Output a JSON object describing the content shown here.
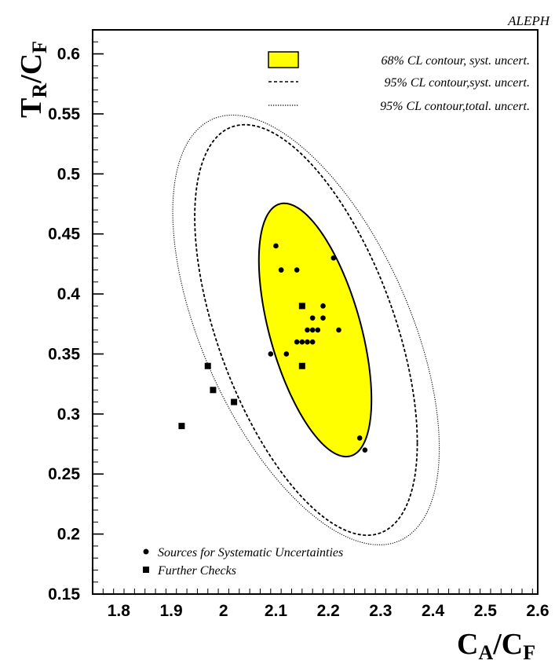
{
  "experiment_label": "ALEPH",
  "chart_data": {
    "type": "scatter",
    "xlabel": {
      "main": "C",
      "sub1": "A",
      "sep": "/C",
      "sub2": "F"
    },
    "ylabel": {
      "main": "T",
      "sub1": "R",
      "sep": "/C",
      "sub2": "F"
    },
    "xlim": [
      1.75,
      2.6
    ],
    "ylim": [
      0.15,
      0.62
    ],
    "x_ticks": [
      "1.8",
      "1.9",
      "2",
      "2.1",
      "2.2",
      "2.3",
      "2.4",
      "2.5",
      "2.6"
    ],
    "y_ticks": [
      "0.15",
      "0.2",
      "0.25",
      "0.3",
      "0.35",
      "0.4",
      "0.45",
      "0.5",
      "0.55",
      "0.6"
    ],
    "grid": false,
    "fill_color": "#ffff00",
    "contours": [
      {
        "name": "68% CL contour, syst. uncert.",
        "style": "filled",
        "center": [
          2.175,
          0.37
        ],
        "x_range": [
          2.085,
          2.3
        ],
        "y_range": [
          0.265,
          0.476
        ]
      },
      {
        "name": "95% CL contour,syst. uncert.",
        "style": "dashed",
        "center": [
          2.1575,
          0.37
        ],
        "x_range": [
          1.988,
          2.413
        ],
        "y_range": [
          0.199,
          0.541
        ]
      },
      {
        "name": "95% CL contour,total. uncert.",
        "style": "dotted",
        "center": [
          2.1575,
          0.37
        ],
        "x_range": [
          1.93,
          2.439
        ],
        "y_range": [
          0.191,
          0.549
        ]
      }
    ],
    "series": [
      {
        "name": "Sources for Systematic Uncertainties",
        "marker": "circle",
        "points": [
          [
            2.1,
            0.44
          ],
          [
            2.11,
            0.42
          ],
          [
            2.11,
            0.42
          ],
          [
            2.14,
            0.42
          ],
          [
            2.21,
            0.43
          ],
          [
            2.15,
            0.39
          ],
          [
            2.19,
            0.39
          ],
          [
            2.17,
            0.38
          ],
          [
            2.19,
            0.38
          ],
          [
            2.16,
            0.37
          ],
          [
            2.17,
            0.37
          ],
          [
            2.18,
            0.37
          ],
          [
            2.22,
            0.37
          ],
          [
            2.14,
            0.36
          ],
          [
            2.15,
            0.36
          ],
          [
            2.16,
            0.36
          ],
          [
            2.17,
            0.36
          ],
          [
            2.09,
            0.35
          ],
          [
            2.12,
            0.35
          ],
          [
            2.26,
            0.28
          ],
          [
            2.27,
            0.27
          ]
        ]
      },
      {
        "name": "Further Checks",
        "marker": "square",
        "points": [
          [
            2.15,
            0.39
          ],
          [
            2.15,
            0.34
          ],
          [
            1.97,
            0.34
          ],
          [
            1.98,
            0.32
          ],
          [
            2.02,
            0.31
          ],
          [
            1.92,
            0.29
          ]
        ]
      }
    ]
  }
}
